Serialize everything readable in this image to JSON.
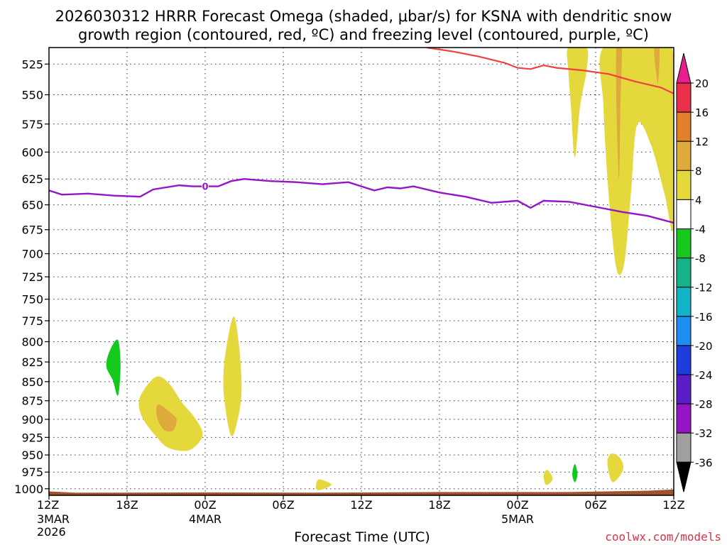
{
  "chart_data": {
    "type": "heatmap",
    "title_line1": "2026030312 HRRR Forecast Omega (shaded, μbar/s) for KSNA with dendritic snow",
    "title_line2": "growth region (contoured, red, ºC) and freezing level (contoured, purple, ºC)",
    "xlabel": "Forecast Time (UTC)",
    "credit": "coolwx.com/models",
    "x_range_hours": [
      0,
      48
    ],
    "y_range_hpa": [
      1010,
      512
    ],
    "x_ticks": [
      {
        "h": 0,
        "l1": "12Z",
        "l2": "3MAR",
        "l3": "2026"
      },
      {
        "h": 6,
        "l1": "18Z",
        "l2": "",
        "l3": ""
      },
      {
        "h": 12,
        "l1": "00Z",
        "l2": "4MAR",
        "l3": ""
      },
      {
        "h": 18,
        "l1": "06Z",
        "l2": "",
        "l3": ""
      },
      {
        "h": 24,
        "l1": "12Z",
        "l2": "",
        "l3": ""
      },
      {
        "h": 30,
        "l1": "18Z",
        "l2": "",
        "l3": ""
      },
      {
        "h": 36,
        "l1": "00Z",
        "l2": "5MAR",
        "l3": ""
      },
      {
        "h": 42,
        "l1": "06Z",
        "l2": "",
        "l3": ""
      },
      {
        "h": 48,
        "l1": "12Z",
        "l2": "",
        "l3": ""
      }
    ],
    "y_ticks": [
      {
        "p": 525,
        "label": "525"
      },
      {
        "p": 550,
        "label": "550"
      },
      {
        "p": 575,
        "label": "575"
      },
      {
        "p": 600,
        "label": "600"
      },
      {
        "p": 625,
        "label": "625"
      },
      {
        "p": 650,
        "label": "650"
      },
      {
        "p": 675,
        "label": "675"
      },
      {
        "p": 700,
        "label": "700"
      },
      {
        "p": 725,
        "label": "725"
      },
      {
        "p": 750,
        "label": "750"
      },
      {
        "p": 775,
        "label": "775"
      },
      {
        "p": 800,
        "label": "800"
      },
      {
        "p": 825,
        "label": "825"
      },
      {
        "p": 850,
        "label": "850"
      },
      {
        "p": 875,
        "label": "875"
      },
      {
        "p": 900,
        "label": "900"
      },
      {
        "p": 925,
        "label": "925"
      },
      {
        "p": 950,
        "label": "950"
      },
      {
        "p": 975,
        "label": "975"
      },
      {
        "p": 1000,
        "label": "1000"
      }
    ],
    "colorbar": {
      "levels": [
        {
          "label": "20",
          "color": "#e8304a"
        },
        {
          "label": "16",
          "color": "#e2802c"
        },
        {
          "label": "12",
          "color": "#deaa3c"
        },
        {
          "label": "8",
          "color": "#e4d83c"
        },
        {
          "label": "4",
          "color": "#ffffff"
        },
        {
          "label": "-4",
          "color": "#14c81e"
        },
        {
          "label": "-8",
          "color": "#14b488"
        },
        {
          "label": "-12",
          "color": "#14b4c8"
        },
        {
          "label": "-16",
          "color": "#1e8cf0"
        },
        {
          "label": "-20",
          "color": "#1e3cdc"
        },
        {
          "label": "-24",
          "color": "#5a1ec8"
        },
        {
          "label": "-28",
          "color": "#9614c8"
        },
        {
          "label": "-32",
          "color": "#a0a0a0"
        },
        {
          "label": "-36",
          "color": "#000000"
        }
      ],
      "top_color": "#e81e8c",
      "bottom_color": "#000000"
    },
    "freezing_level": {
      "label": "0",
      "color": "#9614c8",
      "points": [
        [
          0,
          636
        ],
        [
          1,
          640
        ],
        [
          3,
          639
        ],
        [
          5,
          641
        ],
        [
          7,
          642
        ],
        [
          8,
          635
        ],
        [
          10,
          631
        ],
        [
          11,
          632
        ],
        [
          12,
          632
        ],
        [
          13,
          632
        ],
        [
          14,
          627
        ],
        [
          15,
          625
        ],
        [
          17,
          627
        ],
        [
          19,
          628
        ],
        [
          21,
          630
        ],
        [
          23,
          628
        ],
        [
          24,
          632
        ],
        [
          25,
          636
        ],
        [
          26,
          633
        ],
        [
          27,
          634
        ],
        [
          28,
          632
        ],
        [
          30,
          638
        ],
        [
          32,
          642
        ],
        [
          34,
          648
        ],
        [
          36,
          646
        ],
        [
          37,
          653
        ],
        [
          38,
          646
        ],
        [
          40,
          647
        ],
        [
          42,
          652
        ],
        [
          44,
          657
        ],
        [
          46,
          661
        ],
        [
          48,
          668
        ]
      ]
    },
    "dgz_line": {
      "color": "#f04040",
      "points": [
        [
          29,
          512
        ],
        [
          31,
          515
        ],
        [
          33,
          519
        ],
        [
          35,
          524
        ],
        [
          36,
          528
        ],
        [
          37,
          529
        ],
        [
          38,
          526
        ],
        [
          39,
          528
        ],
        [
          41,
          530
        ],
        [
          43,
          533
        ],
        [
          45,
          539
        ],
        [
          47,
          544
        ],
        [
          48,
          549
        ]
      ]
    },
    "omega_regions": [
      {
        "color": "#e4d83c",
        "points": [
          [
            7,
            870
          ],
          [
            8.2,
            844
          ],
          [
            9.2,
            852
          ],
          [
            10.2,
            877
          ],
          [
            11.2,
            898
          ],
          [
            11.8,
            922
          ],
          [
            10.8,
            943
          ],
          [
            9.2,
            940
          ],
          [
            8.2,
            923
          ],
          [
            7.1,
            895
          ]
        ]
      },
      {
        "color": "#deaa3c",
        "points": [
          [
            8.4,
            880
          ],
          [
            9.6,
            895
          ],
          [
            9.8,
            903
          ],
          [
            9.5,
            916
          ],
          [
            8.8,
            914
          ],
          [
            8.3,
            897
          ]
        ]
      },
      {
        "color": "#e4d83c",
        "points": [
          [
            13.7,
            800
          ],
          [
            14.2,
            770
          ],
          [
            14.6,
            805
          ],
          [
            14.8,
            860
          ],
          [
            14.5,
            900
          ],
          [
            14,
            923
          ],
          [
            13.5,
            878
          ],
          [
            13.4,
            840
          ]
        ]
      },
      {
        "color": "#14c81e",
        "points": [
          [
            4.7,
            810
          ],
          [
            5.3,
            798
          ],
          [
            5.5,
            830
          ],
          [
            5.3,
            868
          ],
          [
            4.9,
            848
          ],
          [
            4.4,
            830
          ]
        ]
      },
      {
        "color": "#e4d83c",
        "points": [
          [
            20.7,
            986
          ],
          [
            21.7,
            994
          ],
          [
            20.6,
            1002
          ]
        ]
      },
      {
        "color": "#e4d83c",
        "points": [
          [
            38,
            980
          ],
          [
            38.3,
            972
          ],
          [
            38.7,
            985
          ],
          [
            38.2,
            994
          ]
        ]
      },
      {
        "color": "#14c81e",
        "points": [
          [
            40.2,
            978
          ],
          [
            40.4,
            963
          ],
          [
            40.6,
            978
          ],
          [
            40.4,
            990
          ]
        ]
      },
      {
        "color": "#e4d83c",
        "points": [
          [
            43.2,
            948
          ],
          [
            43.9,
            955
          ],
          [
            44.1,
            972
          ],
          [
            43.3,
            990
          ],
          [
            42.9,
            962
          ]
        ]
      },
      {
        "color": "#e4d83c",
        "points": [
          [
            39.9,
            512
          ],
          [
            41.3,
            512
          ],
          [
            41.3,
            530
          ],
          [
            40.8,
            560
          ],
          [
            40.4,
            605
          ],
          [
            40.1,
            560
          ],
          [
            39.9,
            530
          ]
        ]
      },
      {
        "color": "#e4d83c",
        "points": [
          [
            42.6,
            512
          ],
          [
            46.5,
            512
          ],
          [
            48,
            520
          ],
          [
            48,
            670
          ],
          [
            47.3,
            640
          ],
          [
            46.3,
            595
          ],
          [
            45.2,
            575
          ],
          [
            44.7,
            640
          ],
          [
            44.2,
            710
          ],
          [
            43.6,
            716
          ],
          [
            43.0,
            640
          ],
          [
            42.6,
            560
          ]
        ]
      },
      {
        "color": "#deaa3c",
        "points": [
          [
            43.6,
            512
          ],
          [
            44,
            512
          ],
          [
            43.9,
            560
          ],
          [
            43.8,
            625
          ],
          [
            43.6,
            560
          ]
        ]
      },
      {
        "color": "#deaa3c",
        "points": [
          [
            46.5,
            512
          ],
          [
            46.9,
            512
          ],
          [
            46.8,
            540
          ],
          [
            46.6,
            528
          ]
        ]
      }
    ],
    "terrain_color": "#a0522d"
  }
}
